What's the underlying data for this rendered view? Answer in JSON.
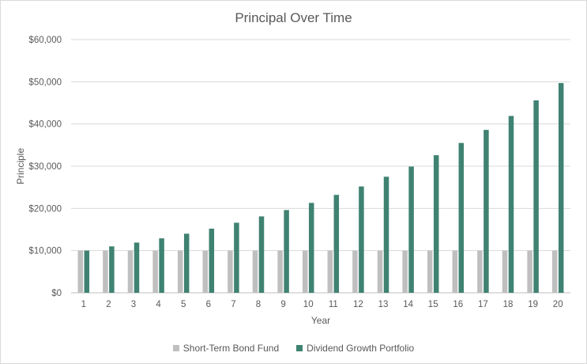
{
  "chart_data": {
    "type": "bar",
    "title": "Principal Over Time",
    "xlabel": "Year",
    "ylabel": "Principle",
    "categories": [
      "1",
      "2",
      "3",
      "4",
      "5",
      "6",
      "7",
      "8",
      "9",
      "10",
      "11",
      "12",
      "13",
      "14",
      "15",
      "16",
      "17",
      "18",
      "19",
      "20"
    ],
    "series": [
      {
        "name": "Short-Term Bond Fund",
        "color": "#bfbfbf",
        "values": [
          10000,
          10000,
          10000,
          10000,
          10000,
          10000,
          10000,
          10000,
          10000,
          10000,
          10000,
          10000,
          10000,
          10000,
          10000,
          10000,
          10000,
          10000,
          10000,
          10000
        ]
      },
      {
        "name": "Dividend Growth Portfolio",
        "color": "#3f8272",
        "values": [
          10000,
          11000,
          11900,
          12900,
          14000,
          15200,
          16600,
          18100,
          19600,
          21300,
          23200,
          25200,
          27500,
          29900,
          32600,
          35500,
          38600,
          41900,
          45600,
          49700
        ]
      }
    ],
    "ylim": [
      0,
      60000
    ],
    "yticks": [
      0,
      10000,
      20000,
      30000,
      40000,
      50000,
      60000
    ],
    "ytick_labels": [
      "$0",
      "$10,000",
      "$20,000",
      "$30,000",
      "$40,000",
      "$50,000",
      "$60,000"
    ],
    "grid": true,
    "legend_position": "bottom"
  }
}
